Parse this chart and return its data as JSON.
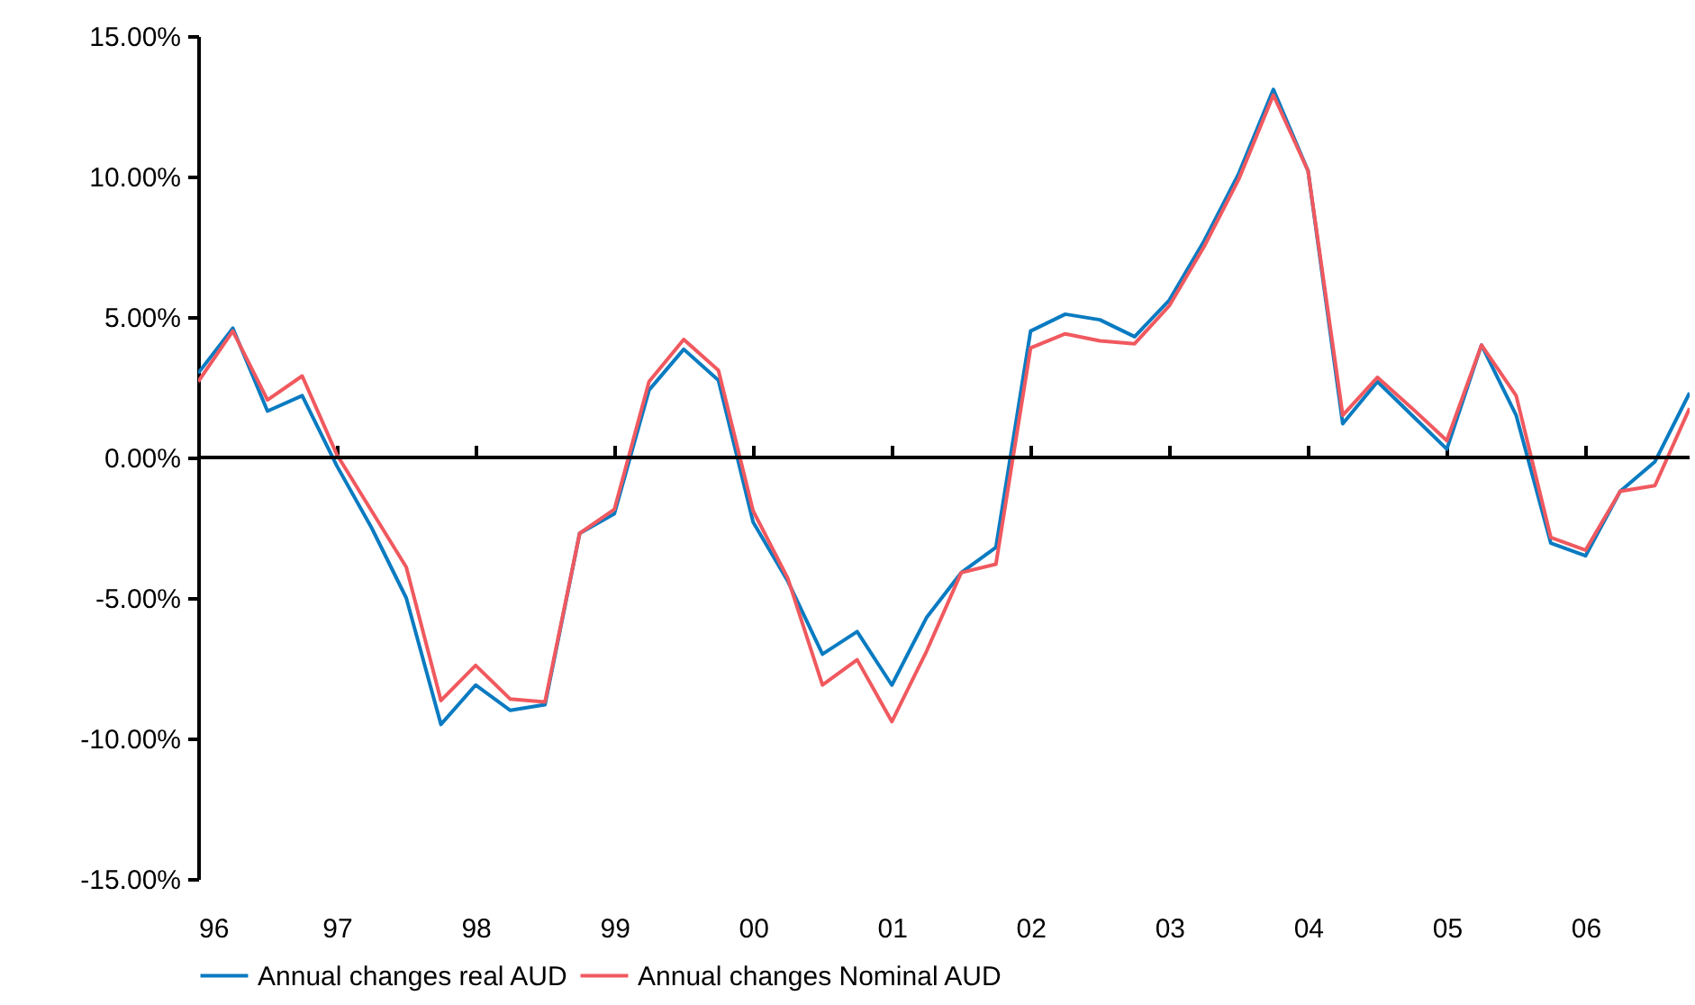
{
  "chart_data": {
    "type": "line",
    "x": [
      1996,
      1996.25,
      1996.5,
      1996.75,
      1997,
      1997.25,
      1997.5,
      1997.75,
      1998,
      1998.25,
      1998.5,
      1998.75,
      1999,
      1999.25,
      1999.5,
      1999.75,
      2000,
      2000.25,
      2000.5,
      2000.75,
      2001,
      2001.25,
      2001.5,
      2001.75,
      2002,
      2002.25,
      2002.5,
      2002.75,
      2003,
      2003.25,
      2003.5,
      2003.75,
      2004,
      2004.25,
      2004.5,
      2004.75,
      2005,
      2005.25,
      2005.5,
      2005.75,
      2006,
      2006.25,
      2006.5,
      2006.75
    ],
    "series": [
      {
        "name": "Annual changes real AUD",
        "color": "#0a7bc1",
        "values": [
          3.0,
          4.6,
          1.65,
          2.2,
          -0.3,
          -2.5,
          -5.0,
          -9.5,
          -8.1,
          -9.0,
          -8.8,
          -2.7,
          -2.0,
          2.4,
          3.85,
          2.75,
          -2.3,
          -4.4,
          -7.0,
          -6.2,
          -8.1,
          -5.7,
          -4.1,
          -3.2,
          4.5,
          5.1,
          4.9,
          4.3,
          5.6,
          7.7,
          10.1,
          13.1,
          10.2,
          1.2,
          2.7,
          1.5,
          0.3,
          4.0,
          1.5,
          -3.05,
          -3.5,
          -1.2,
          -0.15,
          2.3
        ]
      },
      {
        "name": "Annual changes Nominal AUD",
        "color": "#f0595f",
        "values": [
          2.7,
          4.5,
          2.05,
          2.9,
          0.1,
          -1.9,
          -3.9,
          -8.65,
          -7.4,
          -8.6,
          -8.7,
          -2.7,
          -1.85,
          2.7,
          4.2,
          3.1,
          -1.9,
          -4.3,
          -8.1,
          -7.2,
          -9.4,
          -6.9,
          -4.1,
          -3.8,
          3.9,
          4.4,
          4.15,
          4.05,
          5.4,
          7.5,
          9.9,
          12.9,
          10.2,
          1.5,
          2.85,
          1.75,
          0.6,
          4.0,
          2.2,
          -2.85,
          -3.3,
          -1.2,
          -1.0,
          1.75
        ]
      }
    ],
    "xlim": [
      1996,
      2006.75
    ],
    "xticks": [
      {
        "value": 1996,
        "label": "96"
      },
      {
        "value": 1997,
        "label": "97"
      },
      {
        "value": 1998,
        "label": "98"
      },
      {
        "value": 1999,
        "label": "99"
      },
      {
        "value": 2000,
        "label": "00"
      },
      {
        "value": 2001,
        "label": "01"
      },
      {
        "value": 2002,
        "label": "02"
      },
      {
        "value": 2003,
        "label": "03"
      },
      {
        "value": 2004,
        "label": "04"
      },
      {
        "value": 2005,
        "label": "05"
      },
      {
        "value": 2006,
        "label": "06"
      }
    ],
    "ylim": [
      -15,
      15
    ],
    "yticks": [
      {
        "value": -15,
        "label": "-15.00%"
      },
      {
        "value": -10,
        "label": "-10.00%"
      },
      {
        "value": -5,
        "label": "-5.00%"
      },
      {
        "value": 0,
        "label": "0.00%"
      },
      {
        "value": 5,
        "label": "5.00%"
      },
      {
        "value": 10,
        "label": "10.00%"
      },
      {
        "value": 15,
        "label": "15.00%"
      }
    ],
    "ref_lines": [
      {
        "axis": "y",
        "value": 0,
        "color": "#000000"
      }
    ],
    "grid": false,
    "legend": "bottom",
    "marker": "none"
  }
}
